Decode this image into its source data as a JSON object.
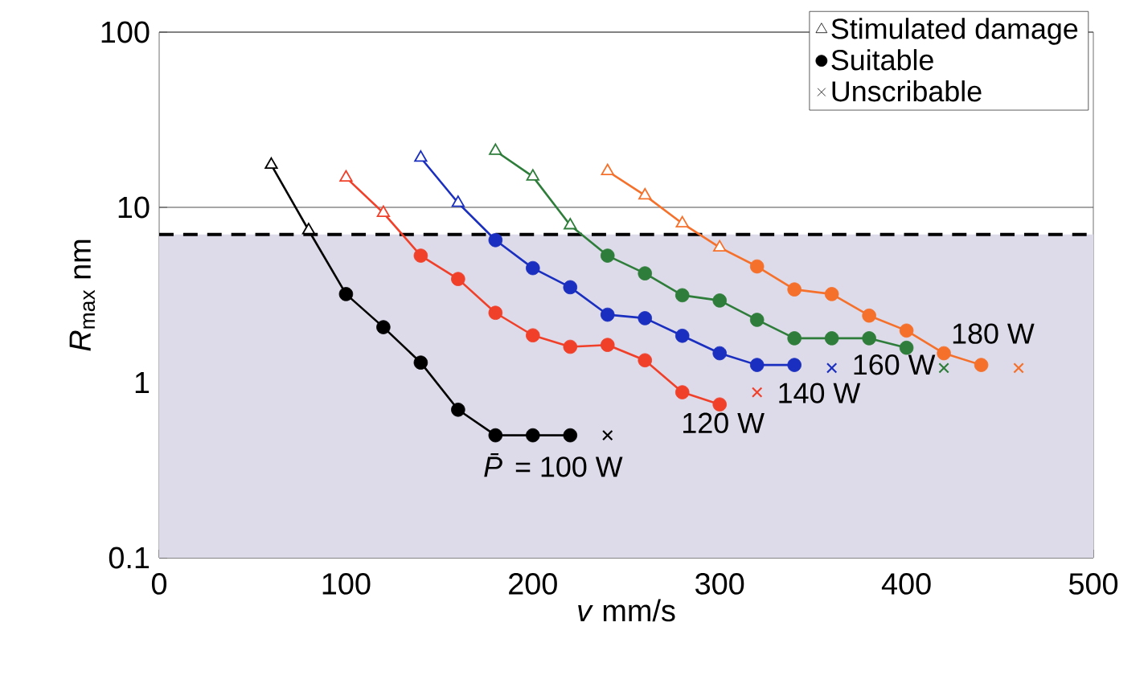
{
  "chart_data": {
    "type": "line",
    "xlabel": "*v* mm/s",
    "ylabel": "*R*$_{max}$ nm",
    "xlim": [
      0,
      500
    ],
    "xticks": [
      0,
      100,
      200,
      300,
      400,
      500
    ],
    "ylim": [
      0.1,
      100
    ],
    "yticks": [
      0.1,
      1,
      10,
      100
    ],
    "log": "y",
    "grid": "y",
    "legend": "top right",
    "series": [
      {
        "name": "*P̄* = 100 W",
        "color": "#000000",
        "marker": "none",
        "x": [
          60,
          80,
          100,
          120,
          140,
          160,
          180,
          200,
          220
        ],
        "values": [
          17.5,
          7.4,
          3.2,
          2.07,
          1.3,
          0.7,
          0.5,
          0.5,
          0.5
        ]
      },
      {
        "name": "120 W",
        "color": "#f0402a",
        "marker": "none",
        "x": [
          100,
          120,
          140,
          160,
          180,
          200,
          220,
          240,
          260,
          280,
          300
        ],
        "values": [
          14.8,
          9.3,
          5.3,
          3.9,
          2.5,
          1.86,
          1.6,
          1.64,
          1.34,
          0.88,
          0.75
        ]
      },
      {
        "name": "140 W",
        "color": "#1a2fbf",
        "marker": "none",
        "x": [
          140,
          160,
          180,
          200,
          220,
          240,
          260,
          280,
          300,
          320,
          340
        ],
        "values": [
          19.2,
          10.6,
          6.5,
          4.5,
          3.5,
          2.44,
          2.33,
          1.85,
          1.47,
          1.26,
          1.26
        ]
      },
      {
        "name": "160 W",
        "color": "#2e7d3a",
        "marker": "none",
        "x": [
          180,
          200,
          220,
          240,
          260,
          280,
          300,
          320,
          340,
          360,
          380,
          400
        ],
        "values": [
          21,
          15,
          7.9,
          5.3,
          4.2,
          3.15,
          2.94,
          2.28,
          1.79,
          1.79,
          1.79,
          1.58
        ]
      },
      {
        "name": "180 W",
        "color": "#f5702a",
        "marker": "none",
        "x": [
          240,
          260,
          280,
          300,
          320,
          340,
          360,
          380,
          400,
          420,
          440
        ],
        "values": [
          16.1,
          11.7,
          8.1,
          5.9,
          4.6,
          3.4,
          3.2,
          2.41,
          1.98,
          1.47,
          1.26
        ]
      },
      {
        "name": "Stimulated damage",
        "type": "scatter",
        "color": "#000000",
        "marker": "triangle",
        "x": [
          60,
          80,
          100,
          120,
          140,
          160,
          180,
          200,
          220,
          240,
          260,
          280,
          300
        ],
        "values": [
          17.5,
          7.4,
          14.8,
          9.3,
          19.2,
          10.6,
          21,
          15,
          7.9,
          16.1,
          11.7,
          8.1,
          5.9
        ],
        "colors": [
          "#000000",
          "#000000",
          "#f0402a",
          "#f0402a",
          "#1a2fbf",
          "#1a2fbf",
          "#2e7d3a",
          "#2e7d3a",
          "#2e7d3a",
          "#f5702a",
          "#f5702a",
          "#f5702a",
          "#f5702a"
        ]
      },
      {
        "name": "Suitable",
        "type": "scatter",
        "color": "#000000",
        "marker": "circle",
        "x": [
          100,
          120,
          140,
          160,
          180,
          200,
          220,
          140,
          160,
          180,
          200,
          220,
          240,
          260,
          280,
          300,
          180,
          200,
          220,
          240,
          260,
          280,
          300,
          320,
          340,
          240,
          260,
          280,
          300,
          320,
          340,
          360,
          380,
          400,
          320,
          340,
          360,
          380,
          400,
          420,
          440
        ],
        "values": [
          3.2,
          2.07,
          1.3,
          0.7,
          0.5,
          0.5,
          0.5,
          5.3,
          3.9,
          2.5,
          1.86,
          1.6,
          1.64,
          1.34,
          0.88,
          0.75,
          6.5,
          4.5,
          3.5,
          2.44,
          2.33,
          1.85,
          1.47,
          1.26,
          1.26,
          5.3,
          4.2,
          3.15,
          2.94,
          2.28,
          1.79,
          1.79,
          1.79,
          1.58,
          4.6,
          3.4,
          3.2,
          2.41,
          1.98,
          1.47,
          1.26
        ],
        "colors": [
          "#000000",
          "#000000",
          "#000000",
          "#000000",
          "#000000",
          "#000000",
          "#000000",
          "#f0402a",
          "#f0402a",
          "#f0402a",
          "#f0402a",
          "#f0402a",
          "#f0402a",
          "#f0402a",
          "#f0402a",
          "#f0402a",
          "#1a2fbf",
          "#1a2fbf",
          "#1a2fbf",
          "#1a2fbf",
          "#1a2fbf",
          "#1a2fbf",
          "#1a2fbf",
          "#1a2fbf",
          "#1a2fbf",
          "#2e7d3a",
          "#2e7d3a",
          "#2e7d3a",
          "#2e7d3a",
          "#2e7d3a",
          "#2e7d3a",
          "#2e7d3a",
          "#2e7d3a",
          "#2e7d3a",
          "#f5702a",
          "#f5702a",
          "#f5702a",
          "#f5702a",
          "#f5702a",
          "#f5702a",
          "#f5702a"
        ]
      },
      {
        "name": "Unscribable",
        "type": "scatter",
        "color": "#000000",
        "marker": "cross",
        "x": [
          240,
          320,
          360,
          420,
          460
        ],
        "values": [
          0.5,
          0.88,
          1.21,
          1.21,
          1.21
        ],
        "colors": [
          "#000000",
          "#f0402a",
          "#1a2fbf",
          "#2e7d3a",
          "#f5702a"
        ]
      }
    ],
    "ref_lines": [
      {
        "axis": "y",
        "value": 7,
        "color": "#000000",
        "line_style": "dashed"
      }
    ],
    "bands": [
      {
        "axis": "y",
        "from": 0.1,
        "to": 7,
        "color": "#dddbe9"
      }
    ]
  }
}
